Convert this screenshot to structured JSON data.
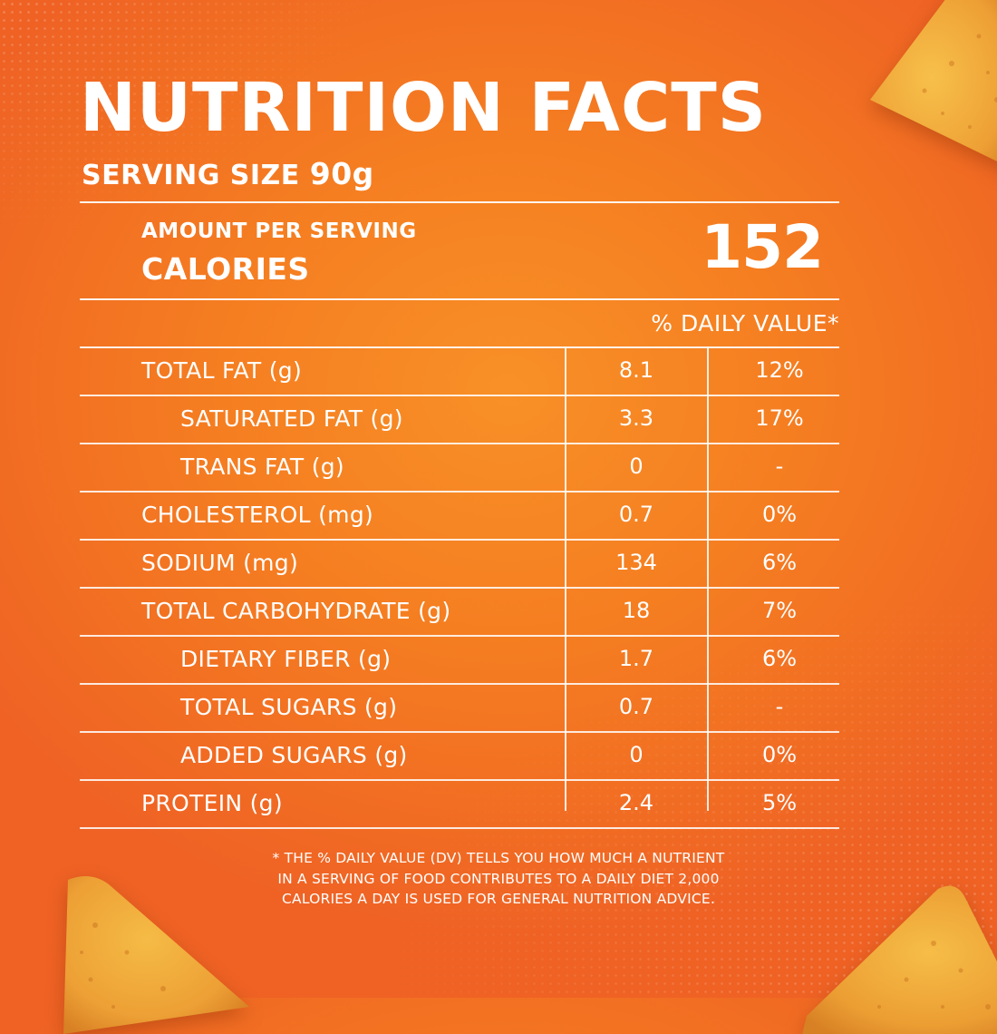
{
  "header": {
    "title": "NUTRITION FACTS",
    "serving_label": "SERVING SIZE",
    "serving_value": "90g"
  },
  "calories": {
    "amount_label": "AMOUNT PER SERVING",
    "label": "CALORIES",
    "value": "152"
  },
  "daily_value_header": "% DAILY VALUE*",
  "nutrients": [
    {
      "name": "TOTAL FAT (g)",
      "amount": "8.1",
      "dv": "12%"
    },
    {
      "name": "SATURATED FAT (g)",
      "amount": "3.3",
      "dv": "17%"
    },
    {
      "name": "TRANS FAT (g)",
      "amount": "0",
      "dv": "-"
    },
    {
      "name": "CHOLESTEROL (mg)",
      "amount": "0.7",
      "dv": "0%"
    },
    {
      "name": "SODIUM (mg)",
      "amount": "134",
      "dv": "6%"
    },
    {
      "name": "TOTAL CARBOHYDRATE (g)",
      "amount": "18",
      "dv": "7%"
    },
    {
      "name": "DIETARY FIBER (g)",
      "amount": "1.7",
      "dv": "6%"
    },
    {
      "name": "TOTAL SUGARS (g)",
      "amount": "0.7",
      "dv": "-"
    },
    {
      "name": "ADDED SUGARS (g)",
      "amount": "0",
      "dv": "0%"
    },
    {
      "name": "PROTEIN (g)",
      "amount": "2.4",
      "dv": "5%"
    }
  ],
  "footnote": {
    "line1": "* THE % DAILY VALUE (DV) TELLS YOU HOW MUCH A NUTRIENT",
    "line2": "IN A SERVING OF FOOD CONTRIBUTES TO A DAILY DIET 2,000",
    "line3": "CALORIES A DAY IS USED FOR GENERAL NUTRITION ADVICE."
  },
  "colors": {
    "background": "#f57e21",
    "text": "#ffffff",
    "chip": "#f2a83a"
  }
}
